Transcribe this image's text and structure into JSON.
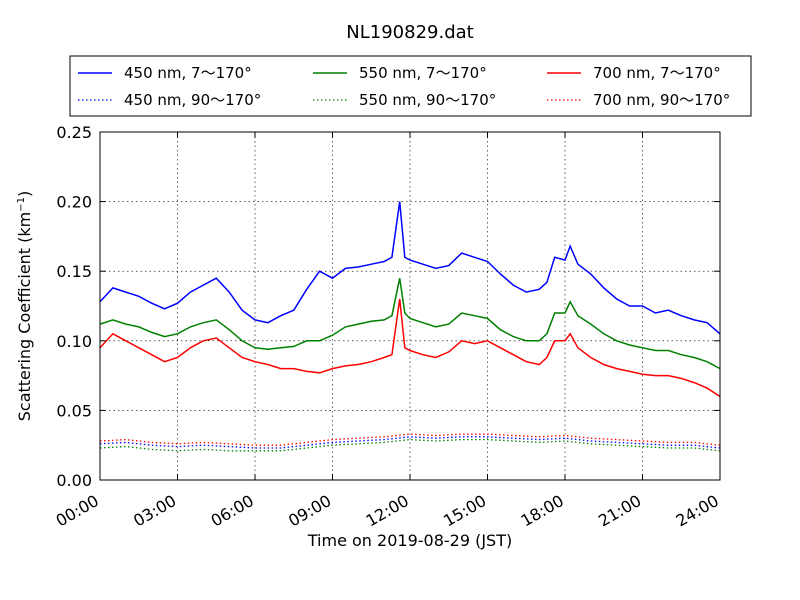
{
  "chart_data": {
    "type": "line",
    "title": "NL190829.dat",
    "xlabel": "Time on 2019-08-29 (JST)",
    "ylabel_main": "Scattering Coefficient (km",
    "ylabel_sup": "−1",
    "ylabel_close": ")",
    "xlim": [
      0,
      24
    ],
    "ylim": [
      0,
      0.25
    ],
    "grid": true,
    "legend_position": "top",
    "x_ticks": [
      {
        "value": 0,
        "label": "00:00"
      },
      {
        "value": 3,
        "label": "03:00"
      },
      {
        "value": 6,
        "label": "06:00"
      },
      {
        "value": 9,
        "label": "09:00"
      },
      {
        "value": 12,
        "label": "12:00"
      },
      {
        "value": 15,
        "label": "15:00"
      },
      {
        "value": 18,
        "label": "18:00"
      },
      {
        "value": 21,
        "label": "21:00"
      },
      {
        "value": 24,
        "label": "24:00"
      }
    ],
    "y_ticks": [
      {
        "value": 0.0,
        "label": "0.00"
      },
      {
        "value": 0.05,
        "label": "0.05"
      },
      {
        "value": 0.1,
        "label": "0.10"
      },
      {
        "value": 0.15,
        "label": "0.15"
      },
      {
        "value": 0.2,
        "label": "0.20"
      },
      {
        "value": 0.25,
        "label": "0.25"
      }
    ],
    "series": [
      {
        "name": "450 nm, 7～170°",
        "color": "#0000ff",
        "style": "solid",
        "x": [
          0,
          0.5,
          1,
          1.5,
          2,
          2.5,
          3,
          3.5,
          4,
          4.5,
          5,
          5.5,
          6,
          6.5,
          7,
          7.5,
          8,
          8.5,
          9,
          9.5,
          10,
          10.5,
          11,
          11.3,
          11.6,
          11.8,
          12,
          12.5,
          13,
          13.5,
          14,
          14.5,
          15,
          15.5,
          16,
          16.5,
          17,
          17.3,
          17.6,
          18,
          18.2,
          18.5,
          19,
          19.5,
          20,
          20.5,
          21,
          21.5,
          22,
          22.5,
          23,
          23.5,
          24
        ],
        "y": [
          0.128,
          0.138,
          0.135,
          0.132,
          0.127,
          0.123,
          0.127,
          0.135,
          0.14,
          0.145,
          0.135,
          0.122,
          0.115,
          0.113,
          0.118,
          0.122,
          0.137,
          0.15,
          0.145,
          0.152,
          0.153,
          0.155,
          0.157,
          0.16,
          0.2,
          0.16,
          0.158,
          0.155,
          0.152,
          0.154,
          0.163,
          0.16,
          0.157,
          0.148,
          0.14,
          0.135,
          0.137,
          0.142,
          0.16,
          0.158,
          0.168,
          0.155,
          0.148,
          0.138,
          0.13,
          0.125,
          0.125,
          0.12,
          0.122,
          0.118,
          0.115,
          0.113,
          0.105
        ]
      },
      {
        "name": "550 nm, 7～170°",
        "color": "#008000",
        "style": "solid",
        "x": [
          0,
          0.5,
          1,
          1.5,
          2,
          2.5,
          3,
          3.5,
          4,
          4.5,
          5,
          5.5,
          6,
          6.5,
          7,
          7.5,
          8,
          8.5,
          9,
          9.5,
          10,
          10.5,
          11,
          11.3,
          11.6,
          11.8,
          12,
          12.5,
          13,
          13.5,
          14,
          14.5,
          15,
          15.5,
          16,
          16.5,
          17,
          17.3,
          17.6,
          18,
          18.2,
          18.5,
          19,
          19.5,
          20,
          20.5,
          21,
          21.5,
          22,
          22.5,
          23,
          23.5,
          24
        ],
        "y": [
          0.112,
          0.115,
          0.112,
          0.11,
          0.106,
          0.103,
          0.105,
          0.11,
          0.113,
          0.115,
          0.108,
          0.1,
          0.095,
          0.094,
          0.095,
          0.096,
          0.1,
          0.1,
          0.104,
          0.11,
          0.112,
          0.114,
          0.115,
          0.118,
          0.145,
          0.12,
          0.116,
          0.113,
          0.11,
          0.112,
          0.12,
          0.118,
          0.116,
          0.108,
          0.103,
          0.1,
          0.1,
          0.105,
          0.12,
          0.12,
          0.128,
          0.118,
          0.112,
          0.105,
          0.1,
          0.097,
          0.095,
          0.093,
          0.093,
          0.09,
          0.088,
          0.085,
          0.08
        ]
      },
      {
        "name": "700 nm, 7～170°",
        "color": "#ff0000",
        "style": "solid",
        "x": [
          0,
          0.5,
          1,
          1.5,
          2,
          2.5,
          3,
          3.5,
          4,
          4.5,
          5,
          5.5,
          6,
          6.5,
          7,
          7.5,
          8,
          8.5,
          9,
          9.5,
          10,
          10.5,
          11,
          11.3,
          11.6,
          11.8,
          12,
          12.5,
          13,
          13.5,
          14,
          14.5,
          15,
          15.5,
          16,
          16.5,
          17,
          17.3,
          17.6,
          18,
          18.2,
          18.5,
          19,
          19.5,
          20,
          20.5,
          21,
          21.5,
          22,
          22.5,
          23,
          23.5,
          24
        ],
        "y": [
          0.095,
          0.105,
          0.1,
          0.095,
          0.09,
          0.085,
          0.088,
          0.095,
          0.1,
          0.102,
          0.095,
          0.088,
          0.085,
          0.083,
          0.08,
          0.08,
          0.078,
          0.077,
          0.08,
          0.082,
          0.083,
          0.085,
          0.088,
          0.09,
          0.13,
          0.095,
          0.093,
          0.09,
          0.088,
          0.092,
          0.1,
          0.098,
          0.1,
          0.095,
          0.09,
          0.085,
          0.083,
          0.088,
          0.1,
          0.1,
          0.105,
          0.095,
          0.088,
          0.083,
          0.08,
          0.078,
          0.076,
          0.075,
          0.075,
          0.073,
          0.07,
          0.066,
          0.06
        ]
      },
      {
        "name": "450 nm, 90～170°",
        "color": "#0000ff",
        "style": "dotted",
        "x": [
          0,
          1,
          2,
          3,
          4,
          5,
          6,
          7,
          8,
          9,
          10,
          11,
          12,
          13,
          14,
          15,
          16,
          17,
          18,
          19,
          20,
          21,
          22,
          23,
          24
        ],
        "y": [
          0.026,
          0.027,
          0.025,
          0.024,
          0.025,
          0.024,
          0.023,
          0.023,
          0.025,
          0.027,
          0.028,
          0.029,
          0.031,
          0.03,
          0.031,
          0.031,
          0.03,
          0.029,
          0.03,
          0.028,
          0.027,
          0.026,
          0.025,
          0.025,
          0.023
        ]
      },
      {
        "name": "550 nm, 90～170°",
        "color": "#008000",
        "style": "dotted",
        "x": [
          0,
          1,
          2,
          3,
          4,
          5,
          6,
          7,
          8,
          9,
          10,
          11,
          12,
          13,
          14,
          15,
          16,
          17,
          18,
          19,
          20,
          21,
          22,
          23,
          24
        ],
        "y": [
          0.023,
          0.024,
          0.022,
          0.021,
          0.022,
          0.021,
          0.021,
          0.021,
          0.023,
          0.025,
          0.026,
          0.027,
          0.029,
          0.028,
          0.029,
          0.029,
          0.028,
          0.027,
          0.028,
          0.026,
          0.025,
          0.024,
          0.023,
          0.023,
          0.021
        ]
      },
      {
        "name": "700 nm, 90～170°",
        "color": "#ff0000",
        "style": "dotted",
        "x": [
          0,
          1,
          2,
          3,
          4,
          5,
          6,
          7,
          8,
          9,
          10,
          11,
          12,
          13,
          14,
          15,
          16,
          17,
          18,
          19,
          20,
          21,
          22,
          23,
          24
        ],
        "y": [
          0.028,
          0.029,
          0.027,
          0.026,
          0.027,
          0.026,
          0.025,
          0.025,
          0.027,
          0.029,
          0.03,
          0.031,
          0.033,
          0.032,
          0.033,
          0.033,
          0.032,
          0.031,
          0.032,
          0.03,
          0.029,
          0.028,
          0.027,
          0.027,
          0.025
        ]
      }
    ]
  }
}
